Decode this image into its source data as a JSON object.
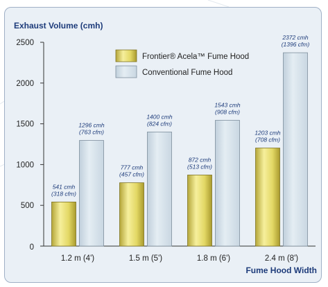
{
  "colors": {
    "frontier_bar": "#e5dc6a",
    "conventional_bar": "#d4e1ea",
    "axis_title": "#1d3b7a",
    "panel_bg": "#eaf0f6"
  },
  "chart_data": {
    "type": "bar",
    "title": "",
    "ylabel": "Exhaust Volume (cmh)",
    "xlabel": "Fume Hood Width",
    "ylim": [
      0,
      2500
    ],
    "yticks": [
      0,
      500,
      1000,
      1500,
      2000,
      2500
    ],
    "categories": [
      "1.2 m (4')",
      "1.5 m (5')",
      "1.8 m (6')",
      "2.4 m (8')"
    ],
    "legend_position": "top-center",
    "grid": false,
    "series": [
      {
        "name": "Frontier® Acela™ Fume Hood",
        "color": "#e5dc6a",
        "values": [
          541,
          777,
          872,
          1203
        ],
        "labels": [
          [
            "541 cmh",
            "(318 cfm)"
          ],
          [
            "777 cmh",
            "(457 cfm)"
          ],
          [
            "872 cmh",
            "(513 cfm)"
          ],
          [
            "1203 cmh",
            "(708 cfm)"
          ]
        ]
      },
      {
        "name": "Conventional Fume Hood",
        "color": "#d4e1ea",
        "values": [
          1296,
          1400,
          1543,
          2372
        ],
        "labels": [
          [
            "1296 cmh",
            "(763 cfm)"
          ],
          [
            "1400 cmh",
            "(824 cfm)"
          ],
          [
            "1543 cmh",
            "(908 cfm)"
          ],
          [
            "2372 cmh",
            "(1396 cfm)"
          ]
        ]
      }
    ]
  }
}
